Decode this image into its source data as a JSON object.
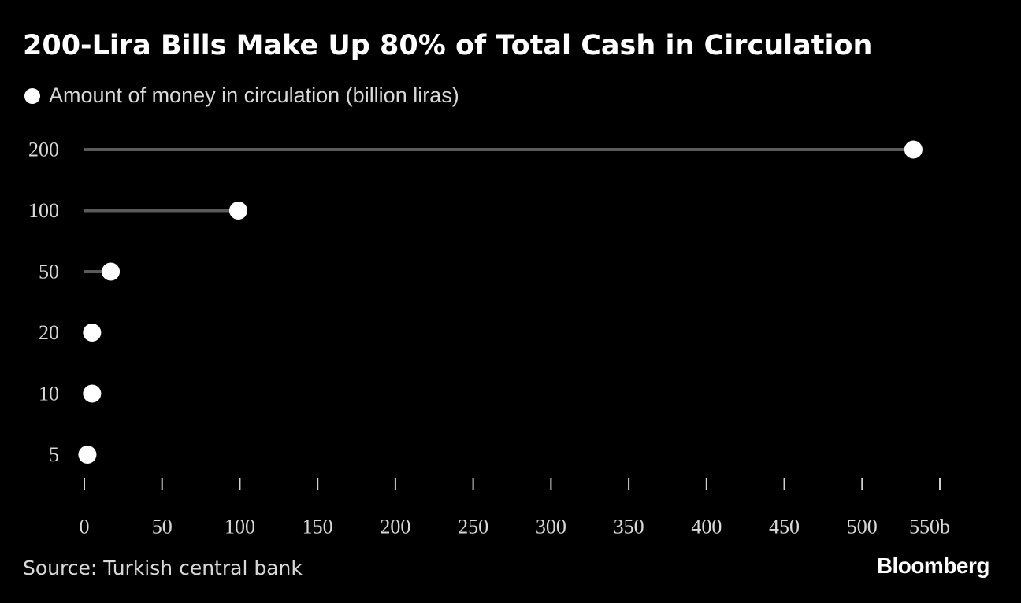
{
  "header": {
    "title": "200-Lira Bills Make Up 80% of Total Cash in Circulation"
  },
  "legend": {
    "label": "Amount of money in circulation (billion liras)"
  },
  "chart_data": {
    "type": "scatter",
    "subtype": "lollipop",
    "orientation": "horizontal",
    "categories": [
      "200",
      "100",
      "50",
      "20",
      "10",
      "5"
    ],
    "series": [
      {
        "name": "Amount of money in circulation (billion liras)",
        "values": [
          533,
          99,
          17,
          5,
          5,
          2
        ]
      }
    ],
    "xlim": [
      0,
      550
    ],
    "x_ticks": [
      0,
      50,
      100,
      150,
      200,
      250,
      300,
      350,
      400,
      450,
      500,
      550
    ],
    "x_tick_labels": [
      "0",
      "50",
      "100",
      "150",
      "200",
      "250",
      "300",
      "350",
      "400",
      "450",
      "500",
      "550b"
    ],
    "grid": false,
    "legend_position": "top-left",
    "colors": {
      "background": "#000000",
      "marker": "#ffffff",
      "stem": "#5a5a5a",
      "text": "#d9d9d9"
    }
  },
  "footer": {
    "source": "Source: Turkish central bank",
    "logo": "Bloomberg"
  }
}
